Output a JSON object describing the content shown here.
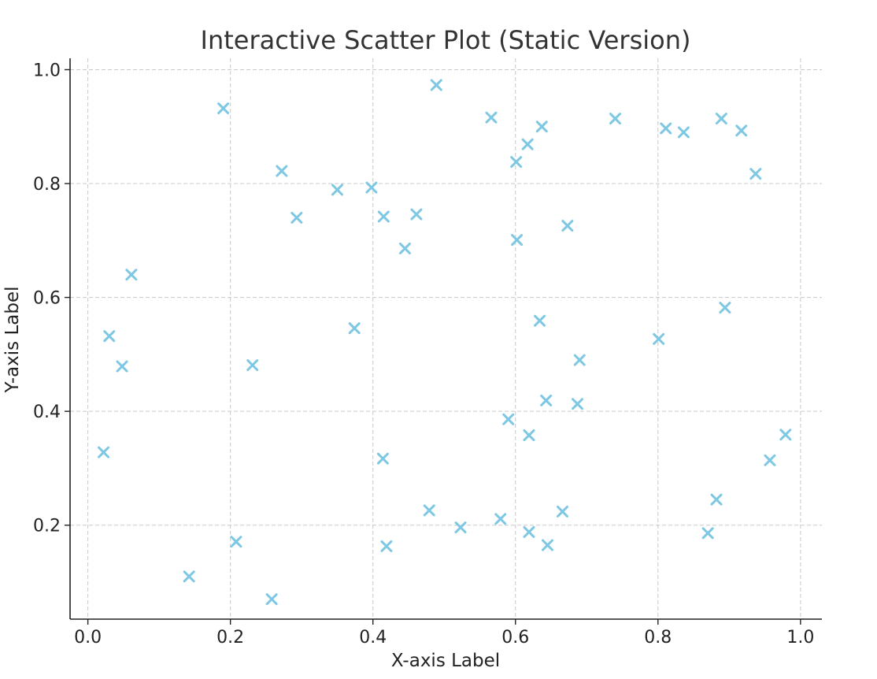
{
  "chart_data": {
    "type": "scatter",
    "title": "Interactive Scatter Plot (Static Version)",
    "xlabel": "X-axis Label",
    "ylabel": "Y-axis Label",
    "xlim": [
      -0.025,
      1.03
    ],
    "ylim": [
      0.035,
      1.02
    ],
    "xticks": [
      0.0,
      0.2,
      0.4,
      0.6,
      0.8,
      1.0
    ],
    "yticks": [
      0.2,
      0.4,
      0.6,
      0.8,
      1.0
    ],
    "xtick_labels": [
      "0.0",
      "0.2",
      "0.4",
      "0.6",
      "0.8",
      "1.0"
    ],
    "ytick_labels": [
      "0.2",
      "0.4",
      "0.6",
      "0.8",
      "1.0"
    ],
    "grid": true,
    "marker": "x",
    "color": "#7ec8e3",
    "series": [
      {
        "points": [
          [
            0.022,
            0.328
          ],
          [
            0.03,
            0.532
          ],
          [
            0.048,
            0.479
          ],
          [
            0.061,
            0.64
          ],
          [
            0.142,
            0.11
          ],
          [
            0.19,
            0.932
          ],
          [
            0.208,
            0.171
          ],
          [
            0.231,
            0.481
          ],
          [
            0.258,
            0.07
          ],
          [
            0.272,
            0.822
          ],
          [
            0.293,
            0.74
          ],
          [
            0.35,
            0.789
          ],
          [
            0.374,
            0.546
          ],
          [
            0.398,
            0.793
          ],
          [
            0.415,
            0.742
          ],
          [
            0.414,
            0.317
          ],
          [
            0.419,
            0.163
          ],
          [
            0.445,
            0.686
          ],
          [
            0.461,
            0.746
          ],
          [
            0.479,
            0.226
          ],
          [
            0.489,
            0.973
          ],
          [
            0.523,
            0.196
          ],
          [
            0.566,
            0.916
          ],
          [
            0.579,
            0.211
          ],
          [
            0.59,
            0.386
          ],
          [
            0.601,
            0.838
          ],
          [
            0.602,
            0.701
          ],
          [
            0.617,
            0.869
          ],
          [
            0.619,
            0.358
          ],
          [
            0.619,
            0.188
          ],
          [
            0.634,
            0.559
          ],
          [
            0.637,
            0.9
          ],
          [
            0.643,
            0.419
          ],
          [
            0.645,
            0.165
          ],
          [
            0.666,
            0.224
          ],
          [
            0.673,
            0.726
          ],
          [
            0.687,
            0.413
          ],
          [
            0.69,
            0.49
          ],
          [
            0.74,
            0.914
          ],
          [
            0.801,
            0.527
          ],
          [
            0.811,
            0.897
          ],
          [
            0.836,
            0.89
          ],
          [
            0.87,
            0.186
          ],
          [
            0.882,
            0.245
          ],
          [
            0.889,
            0.914
          ],
          [
            0.894,
            0.582
          ],
          [
            0.917,
            0.893
          ],
          [
            0.937,
            0.817
          ],
          [
            0.957,
            0.314
          ],
          [
            0.979,
            0.359
          ]
        ]
      }
    ]
  }
}
